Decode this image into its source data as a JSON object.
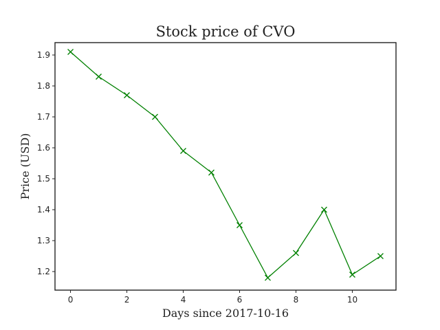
{
  "chart_data": {
    "type": "line",
    "title": "Stock price of CVO",
    "xlabel": "Days since 2017-10-16",
    "ylabel": "Price (USD)",
    "x": [
      0,
      1,
      2,
      3,
      4,
      5,
      6,
      7,
      8,
      9,
      10,
      11
    ],
    "series": [
      {
        "values": [
          1.91,
          1.83,
          1.77,
          1.7,
          1.59,
          1.52,
          1.35,
          1.18,
          1.26,
          1.4,
          1.19,
          1.25
        ],
        "color": "#008000",
        "marker": "x"
      }
    ],
    "xlim": [
      -0.55,
      11.55
    ],
    "ylim": [
      1.14,
      1.94
    ],
    "xticks": [
      0,
      2,
      4,
      6,
      8,
      10
    ],
    "xtick_labels": [
      "0",
      "2",
      "4",
      "6",
      "8",
      "10"
    ],
    "yticks": [
      1.2,
      1.3,
      1.4,
      1.5,
      1.6,
      1.7,
      1.8,
      1.9
    ],
    "ytick_labels": [
      "1.2",
      "1.3",
      "1.4",
      "1.5",
      "1.6",
      "1.7",
      "1.8",
      "1.9"
    ],
    "grid": false,
    "legend": false
  }
}
